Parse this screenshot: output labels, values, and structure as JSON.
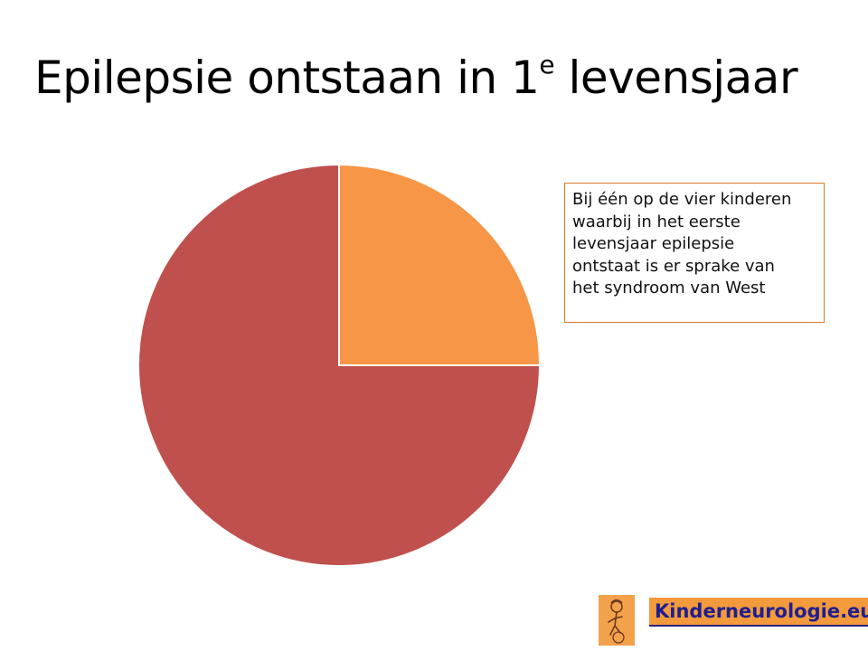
{
  "slide": {
    "title_main": "Epilepsie ontstaan in 1",
    "title_sup": "e",
    "title_rest": " levensjaar"
  },
  "callout": {
    "lines": [
      "Bij één op de vier kinderen",
      "waarbij in het eerste",
      "levensjaar epilepsie",
      "ontstaat is er sprake van",
      "het syndroom van West"
    ]
  },
  "logo": {
    "text": "Kinderneurologie.eu",
    "icon": "child-figure-icon"
  },
  "chart_data": {
    "type": "pie",
    "title": "",
    "start_angle": "12 o'clock, clockwise",
    "legend": "none",
    "slices": [
      {
        "value": 25,
        "color": "#f79646"
      },
      {
        "value": 75,
        "color": "#c0504d"
      }
    ]
  }
}
